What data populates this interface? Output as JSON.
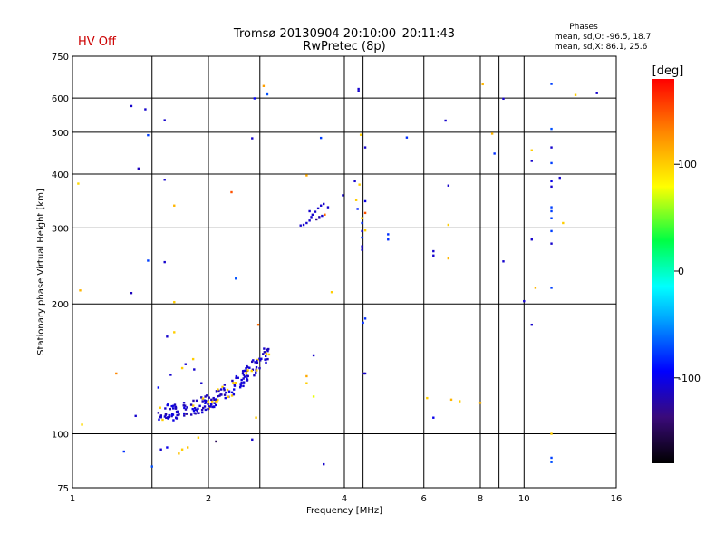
{
  "status_label": "HV Off",
  "status_color": "#cc0000",
  "title_line1": "Tromsø 20130904 20:10:00–20:11:43",
  "title_line2": "RwPretec (8p)",
  "stats": {
    "heading": "Phases",
    "line1": "mean, sd,O: -96.5, 18.7",
    "line2": "mean, sd,X:  86.1, 25.6"
  },
  "colorbar": {
    "label": "[deg]",
    "ticks": [
      "100",
      "0",
      "-100"
    ],
    "tick_values": [
      100,
      0,
      -100
    ],
    "range": [
      -180,
      180
    ]
  },
  "chart_data": {
    "type": "scatter",
    "xlabel": "Frequency [MHz]",
    "ylabel": "Stationary phase Virtual Height [km]",
    "x_scale": "log",
    "y_scale": "log",
    "xlim": [
      1,
      16
    ],
    "ylim": [
      75,
      750
    ],
    "x_ticks": [
      1,
      2,
      4,
      6,
      8,
      10,
      16
    ],
    "x_tick_labels": [
      "1",
      "2",
      "4",
      "6",
      "8",
      "10",
      "16"
    ],
    "y_ticks": [
      75,
      100,
      200,
      300,
      400,
      500,
      600,
      750
    ],
    "y_tick_labels": [
      "75",
      "100",
      "200",
      "300",
      "400",
      "500",
      "600",
      "750"
    ],
    "extra_vgrid": [
      1.5,
      2.6,
      4.4,
      8.8
    ],
    "grid": true,
    "points": [
      [
        1.03,
        380,
        95
      ],
      [
        1.04,
        215,
        110
      ],
      [
        1.05,
        105,
        95
      ],
      [
        1.25,
        138,
        130
      ],
      [
        1.3,
        91,
        -80
      ],
      [
        1.35,
        575,
        -110
      ],
      [
        1.35,
        212,
        -115
      ],
      [
        1.38,
        110,
        -110
      ],
      [
        1.4,
        412,
        -115
      ],
      [
        1.45,
        565,
        -110
      ],
      [
        1.47,
        492,
        -75
      ],
      [
        1.47,
        252,
        -75
      ],
      [
        1.5,
        84,
        -70
      ],
      [
        1.55,
        128,
        -90
      ],
      [
        1.57,
        92,
        -110
      ],
      [
        1.6,
        533,
        -110
      ],
      [
        1.6,
        388,
        -110
      ],
      [
        1.6,
        250,
        -110
      ],
      [
        1.62,
        93,
        -100
      ],
      [
        1.62,
        168,
        -110
      ],
      [
        1.65,
        137,
        -110
      ],
      [
        1.68,
        338,
        110
      ],
      [
        1.68,
        202,
        100
      ],
      [
        1.68,
        172,
        100
      ],
      [
        1.72,
        90,
        105
      ],
      [
        1.75,
        142,
        100
      ],
      [
        1.75,
        92,
        100
      ],
      [
        1.78,
        145,
        -110
      ],
      [
        1.8,
        93,
        105
      ],
      [
        1.85,
        149,
        100
      ],
      [
        1.86,
        141,
        -110
      ],
      [
        1.9,
        98,
        100
      ],
      [
        1.93,
        131,
        -110
      ],
      [
        2.08,
        96,
        -150
      ],
      [
        2.25,
        363,
        150
      ],
      [
        2.3,
        229,
        -70
      ],
      [
        2.5,
        484,
        -110
      ],
      [
        2.5,
        97,
        -110
      ],
      [
        2.53,
        599,
        -95
      ],
      [
        2.55,
        109,
        100
      ],
      [
        2.58,
        179,
        140
      ],
      [
        2.65,
        640,
        120
      ],
      [
        2.7,
        612,
        -70
      ],
      [
        3.3,
        397,
        115
      ],
      [
        3.3,
        136,
        115
      ],
      [
        3.3,
        131,
        100
      ],
      [
        3.42,
        152,
        -110
      ],
      [
        3.42,
        122,
        75
      ],
      [
        3.55,
        485,
        -75
      ],
      [
        3.6,
        85,
        -110
      ],
      [
        3.68,
        335,
        -110
      ],
      [
        3.75,
        213,
        100
      ],
      [
        3.97,
        357,
        -110
      ],
      [
        4.22,
        385,
        -110
      ],
      [
        4.25,
        348,
        100
      ],
      [
        4.28,
        332,
        -85
      ],
      [
        4.3,
        630,
        -110
      ],
      [
        4.3,
        623,
        -110
      ],
      [
        4.32,
        378,
        100
      ],
      [
        4.35,
        493,
        100
      ],
      [
        4.38,
        316,
        100
      ],
      [
        4.38,
        308,
        -80
      ],
      [
        4.38,
        295,
        -110
      ],
      [
        4.38,
        285,
        -80
      ],
      [
        4.38,
        272,
        -110
      ],
      [
        4.38,
        267,
        -110
      ],
      [
        4.4,
        181,
        -80
      ],
      [
        4.42,
        138,
        100
      ],
      [
        4.42,
        138,
        -110
      ],
      [
        4.45,
        461,
        -110
      ],
      [
        4.45,
        346,
        -100
      ],
      [
        4.45,
        325,
        150
      ],
      [
        4.45,
        296,
        100
      ],
      [
        4.45,
        185,
        -80
      ],
      [
        4.45,
        138,
        -110
      ],
      [
        5.0,
        290,
        -80
      ],
      [
        5.0,
        282,
        -80
      ],
      [
        5.5,
        486,
        -80
      ],
      [
        6.3,
        265,
        -110
      ],
      [
        6.3,
        259,
        -110
      ],
      [
        6.3,
        109,
        -100
      ],
      [
        6.7,
        532,
        -110
      ],
      [
        6.8,
        376,
        -110
      ],
      [
        6.8,
        305,
        100
      ],
      [
        6.8,
        255,
        110
      ],
      [
        8.1,
        646,
        110
      ],
      [
        8.5,
        496,
        110
      ],
      [
        8.6,
        446,
        -80
      ],
      [
        9.0,
        598,
        -110
      ],
      [
        9.0,
        251,
        -110
      ],
      [
        10.0,
        203,
        -110
      ],
      [
        10.4,
        454,
        100
      ],
      [
        10.4,
        429,
        -110
      ],
      [
        10.4,
        282,
        -110
      ],
      [
        10.4,
        179,
        -110
      ],
      [
        11.5,
        647,
        -75
      ],
      [
        11.5,
        509,
        -70
      ],
      [
        11.5,
        461,
        -110
      ],
      [
        11.5,
        424,
        -75
      ],
      [
        11.5,
        385,
        -100
      ],
      [
        11.5,
        374,
        -110
      ],
      [
        11.5,
        335,
        -75
      ],
      [
        11.5,
        328,
        -75
      ],
      [
        11.5,
        316,
        -75
      ],
      [
        11.5,
        295,
        -75
      ],
      [
        11.5,
        276,
        -110
      ],
      [
        11.5,
        218,
        -75
      ],
      [
        11.5,
        100,
        100
      ],
      [
        11.5,
        88,
        -75
      ],
      [
        11.5,
        86,
        -70
      ],
      [
        12.0,
        392,
        -110
      ],
      [
        12.2,
        308,
        100
      ],
      [
        13.0,
        610,
        100
      ],
      [
        14.5,
        616,
        -110
      ],
      [
        10.6,
        218,
        110
      ],
      [
        8.0,
        118,
        110
      ],
      [
        7.2,
        119,
        100
      ],
      [
        6.9,
        120,
        110
      ],
      [
        6.1,
        121,
        100
      ]
    ],
    "trace_points": [
      [
        3.2,
        304,
        -110
      ],
      [
        3.25,
        305,
        -110
      ],
      [
        3.3,
        308,
        -110
      ],
      [
        3.35,
        312,
        -110
      ],
      [
        3.38,
        318,
        -110
      ],
      [
        3.4,
        322,
        -110
      ],
      [
        3.45,
        327,
        -110
      ],
      [
        3.5,
        333,
        -110
      ],
      [
        3.55,
        338,
        -110
      ],
      [
        3.6,
        341,
        -110
      ],
      [
        3.47,
        314,
        -130
      ],
      [
        3.52,
        318,
        -120
      ],
      [
        3.57,
        320,
        -110
      ],
      [
        3.62,
        322,
        140
      ],
      [
        3.35,
        328,
        -110
      ]
    ],
    "cloud": {
      "from_x": 1.55,
      "to_x": 2.75,
      "y_start": 112,
      "y_end": 158,
      "count": 190,
      "color_phase": -110
    }
  }
}
